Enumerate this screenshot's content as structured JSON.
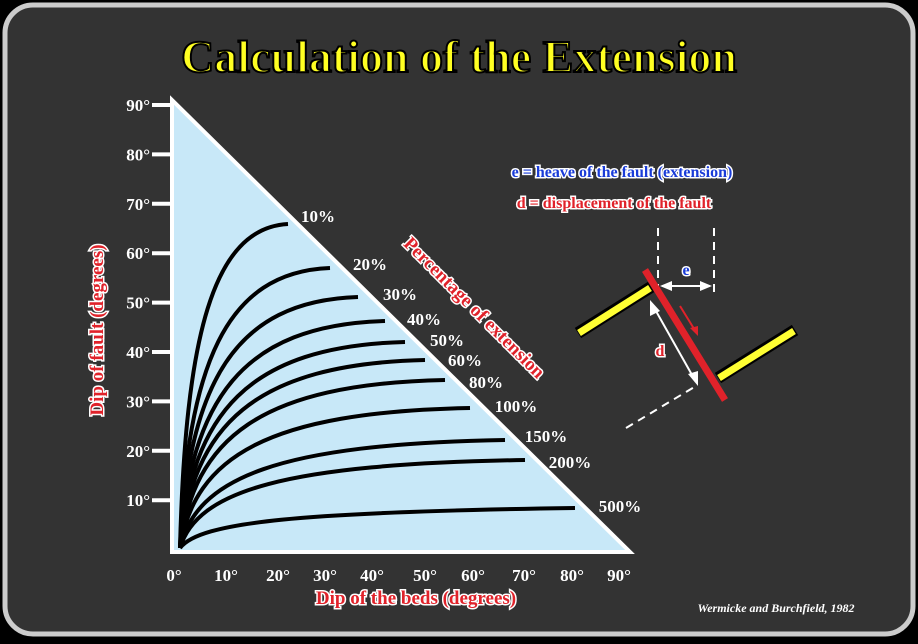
{
  "title": "Calculation of the Extension",
  "y_axis": {
    "label": "Dip of fault (degrees)",
    "ticks": [
      "90°",
      "80°",
      "70°",
      "60°",
      "50°",
      "40°",
      "30°",
      "20°",
      "10°"
    ]
  },
  "x_axis": {
    "label": "Dip of the beds (degrees)",
    "ticks": [
      "0°",
      "10°",
      "20°",
      "30°",
      "40°",
      "50°",
      "60°",
      "70°",
      "80°",
      "90°"
    ]
  },
  "curves": {
    "label": "Percentage of extension",
    "labels": [
      "10%",
      "20%",
      "30%",
      "40%",
      "50%",
      "60%",
      "80%",
      "100%",
      "150%",
      "200%",
      "500%"
    ]
  },
  "legend": [
    "e  = heave of the fault (extension)",
    "d = displacement of the fault"
  ],
  "sketch": {
    "e": "e",
    "d": "d"
  },
  "credit": "Wermicke and Burchfield, 1982"
}
